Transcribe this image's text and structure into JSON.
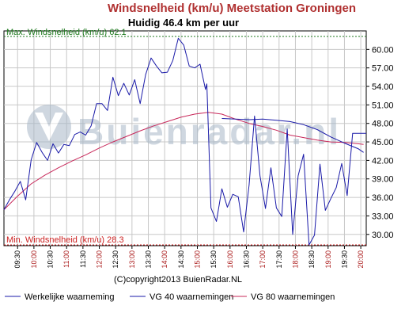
{
  "chart_data": {
    "type": "line",
    "title": "Windsnelheid (km/u) Meetstation Groningen",
    "subtitle": "Huidig 46.4 km per uur",
    "max_label": "Max. Windsnelheid (km/u) 62.1",
    "min_label": "Min. Windsnelheid (km/u) 28.3",
    "max_value": 62.1,
    "min_value": 28.3,
    "watermark": "Buienradar.nl",
    "copyright": "(C)copyright2013 BuienRadar.NL",
    "ylim": [
      28.3,
      62.1
    ],
    "yticks": [
      "30.00",
      "33.00",
      "36.00",
      "39.00",
      "42.00",
      "45.00",
      "48.00",
      "51.00",
      "54.00",
      "57.00",
      "60.00"
    ],
    "ytick_values": [
      30,
      33,
      36,
      39,
      42,
      45,
      48,
      51,
      54,
      57,
      60
    ],
    "xlim": [
      0,
      133
    ],
    "xticks": [
      "09:30",
      "10:00",
      "10:30",
      "11:00",
      "11:30",
      "12:00",
      "12:30",
      "13:00",
      "13:30",
      "14:00",
      "14:30",
      "15:00",
      "15:30",
      "16:00",
      "16:30",
      "17:00",
      "17:30",
      "18:00",
      "18:30",
      "19:00",
      "19:30",
      "20:00"
    ],
    "xtick_minutes": [
      5,
      11,
      17,
      23,
      29,
      35,
      41,
      47,
      53,
      59,
      65,
      71,
      77,
      83,
      89,
      95,
      101,
      107,
      113,
      119,
      125,
      131
    ],
    "grid": true,
    "legend_position": "bottom",
    "series": [
      {
        "name": "Werkelijke waarneming",
        "color": "#1a1aa8",
        "x": [
          0,
          2,
          4,
          6,
          8,
          10,
          12,
          14,
          16,
          18,
          20,
          22,
          24,
          26,
          28,
          30,
          32,
          34,
          36,
          38,
          40,
          42,
          44,
          46,
          48,
          50,
          52,
          54,
          56,
          58,
          60,
          62,
          64,
          66,
          68,
          70,
          72,
          74,
          74.5,
          76,
          78,
          80,
          82,
          84,
          86,
          88,
          90,
          92,
          94,
          96,
          98,
          100,
          102,
          104,
          106,
          108,
          110,
          112,
          114,
          116,
          118,
          120,
          122,
          124,
          126,
          128,
          130,
          132,
          133
        ],
        "y": [
          34.0,
          35.6,
          37.0,
          38.6,
          35.6,
          42.1,
          44.9,
          43.3,
          42.0,
          44.7,
          43.2,
          44.6,
          44.4,
          46.2,
          46.6,
          46.1,
          47.6,
          51.2,
          51.2,
          50.1,
          55.5,
          52.5,
          54.5,
          52.6,
          55.1,
          51.2,
          55.9,
          58.6,
          57.3,
          56.2,
          56.3,
          58.2,
          61.8,
          60.7,
          57.3,
          57.0,
          57.6,
          53.5,
          54.4,
          34.3,
          32.1,
          37.4,
          34.4,
          36.5,
          36.1,
          30.4,
          38.0,
          49.2,
          39.5,
          34.2,
          40.8,
          34.3,
          32.9,
          47.1,
          30.0,
          39.5,
          43.0,
          28.3,
          29.9,
          41.4,
          33.9,
          35.8,
          37.6,
          41.5,
          36.3,
          46.4,
          46.4,
          46.4,
          46.4
        ]
      },
      {
        "name": "VG 40 waarnemingen",
        "color": "#1a1aa8",
        "x": [
          80,
          85,
          90,
          95,
          100,
          105,
          110,
          115,
          120,
          125,
          130,
          132
        ],
        "y": [
          48.8,
          48.7,
          48.6,
          48.7,
          48.5,
          48.3,
          47.8,
          47.0,
          45.8,
          44.8,
          43.9,
          43.3
        ]
      },
      {
        "name": "VG 80 waarnemingen",
        "color": "#c8285a",
        "x": [
          0,
          5,
          10,
          15,
          20,
          25,
          30,
          35,
          40,
          45,
          50,
          55,
          60,
          65,
          70,
          75,
          80,
          85,
          90,
          95,
          100,
          105,
          110,
          115,
          120,
          125,
          130,
          132
        ],
        "y": [
          34.0,
          36.2,
          38.2,
          39.6,
          40.8,
          41.9,
          42.9,
          44.0,
          45.0,
          45.9,
          46.8,
          47.6,
          48.3,
          49.0,
          49.5,
          49.8,
          49.5,
          48.7,
          48.0,
          47.5,
          46.9,
          46.1,
          45.7,
          45.3,
          45.0,
          44.9,
          44.7,
          44.6
        ]
      }
    ]
  }
}
